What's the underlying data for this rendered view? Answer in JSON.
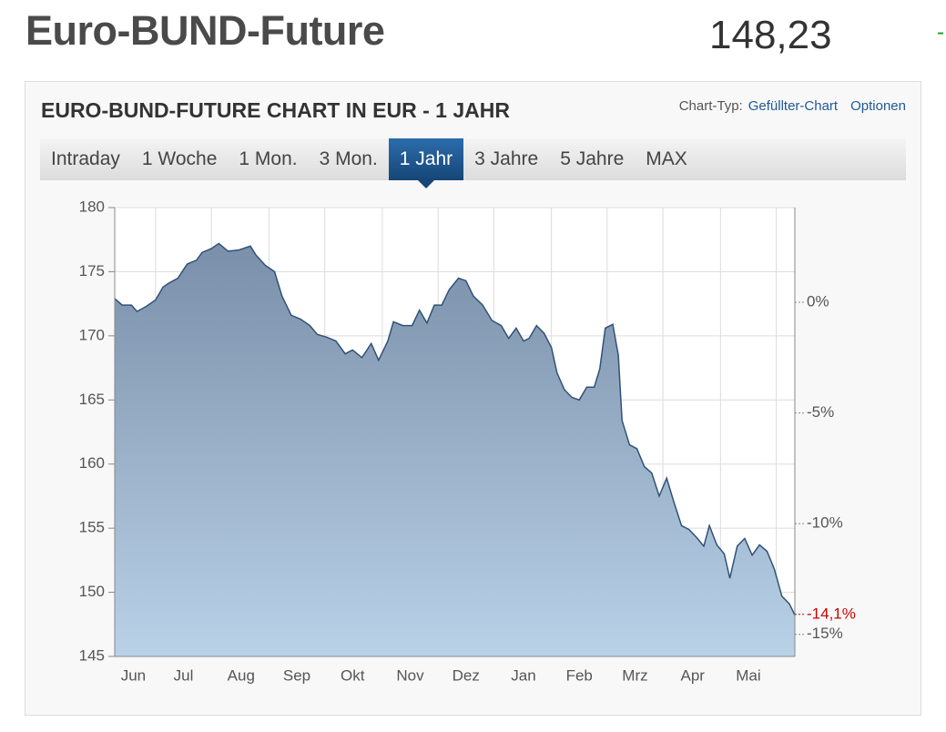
{
  "header": {
    "title": "Euro-BUND-Future",
    "price": "148,23",
    "change": "-"
  },
  "panel": {
    "title": "EURO-BUND-FUTURE CHART IN EUR - 1 JAHR",
    "chart_type_label": "Chart-Typ:",
    "chart_type": "Gefüllter-Chart",
    "options": "Optionen"
  },
  "tabs": {
    "items": [
      "Intraday",
      "1 Woche",
      "1 Mon.",
      "3 Mon.",
      "1 Jahr",
      "3 Jahre",
      "5 Jahre",
      "MAX"
    ],
    "active": 4
  },
  "chart_data": {
    "type": "area",
    "x": [
      0,
      4,
      9,
      12,
      17,
      22,
      26,
      29,
      34,
      39,
      44,
      47,
      52,
      56,
      61,
      67,
      73,
      76,
      81,
      86,
      90,
      95,
      100,
      105,
      109,
      114,
      119,
      124,
      128,
      133,
      138,
      142,
      147,
      150,
      155,
      160,
      164,
      168,
      172,
      176,
      180,
      185,
      189,
      193,
      198,
      203,
      208,
      212,
      216,
      220,
      223,
      227,
      231,
      235,
      238,
      242,
      246,
      250,
      254,
      258,
      261,
      264,
      268,
      271,
      273,
      277,
      281,
      285,
      289,
      293,
      297,
      301,
      305,
      309,
      313,
      317,
      320,
      324,
      328,
      331,
      335,
      339,
      343,
      347,
      351,
      355,
      359,
      363,
      366
    ],
    "values": [
      172.9,
      172.4,
      172.4,
      171.9,
      172.3,
      172.8,
      173.8,
      174.1,
      174.5,
      175.6,
      175.9,
      176.5,
      176.8,
      177.2,
      176.6,
      176.7,
      177.0,
      176.3,
      175.5,
      175.0,
      173.1,
      171.6,
      171.3,
      170.8,
      170.1,
      169.9,
      169.6,
      168.6,
      168.9,
      168.3,
      169.4,
      168.1,
      169.6,
      171.1,
      170.8,
      170.8,
      172.0,
      171.0,
      172.4,
      172.4,
      173.6,
      174.5,
      174.3,
      173.1,
      172.4,
      171.2,
      170.8,
      169.8,
      170.6,
      169.6,
      169.8,
      170.8,
      170.2,
      169.1,
      167.1,
      165.8,
      165.2,
      165.0,
      166.0,
      166.0,
      167.4,
      170.6,
      170.9,
      168.5,
      163.4,
      161.5,
      161.2,
      159.8,
      159.3,
      157.5,
      158.9,
      157.0,
      155.2,
      154.9,
      154.3,
      153.6,
      155.2,
      153.7,
      153.0,
      151.1,
      153.6,
      154.2,
      152.9,
      153.7,
      153.2,
      151.8,
      149.7,
      149.1,
      148.23
    ],
    "color": "#2f5277",
    "xlim": [
      0,
      366
    ],
    "xticks": [
      {
        "value": 10,
        "label": "Jun"
      },
      {
        "value": 37,
        "label": "Jul"
      },
      {
        "value": 68,
        "label": "Aug"
      },
      {
        "value": 98,
        "label": "Sep"
      },
      {
        "value": 128,
        "label": "Okt"
      },
      {
        "value": 159,
        "label": "Nov"
      },
      {
        "value": 189,
        "label": "Dez"
      },
      {
        "value": 220,
        "label": "Jan"
      },
      {
        "value": 250,
        "label": "Feb"
      },
      {
        "value": 280,
        "label": "Mrz"
      },
      {
        "value": 311,
        "label": "Apr"
      },
      {
        "value": 341,
        "label": "Mai"
      }
    ],
    "xgrid": [
      22,
      52,
      83,
      113,
      144,
      174,
      204,
      235,
      265,
      295,
      326,
      356
    ],
    "ylim": [
      145,
      180
    ],
    "yticks": [
      145,
      150,
      155,
      160,
      165,
      170,
      175,
      180
    ],
    "y2lim": [
      -16,
      4.28
    ],
    "y2ticks": [
      {
        "value": 0,
        "label": "0%"
      },
      {
        "value": -5,
        "label": "-5%"
      },
      {
        "value": -10,
        "label": "-10%"
      },
      {
        "value": -15,
        "label": "-15%"
      }
    ],
    "last_change": {
      "value": -14.1,
      "label": "-14,1%"
    },
    "grid": true
  }
}
